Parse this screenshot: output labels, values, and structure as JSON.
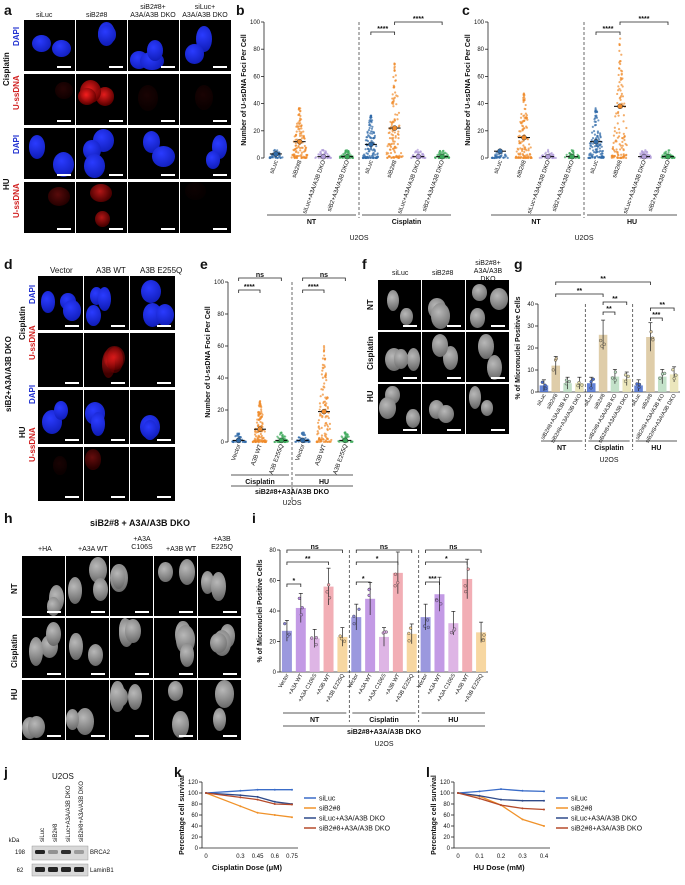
{
  "panels": {
    "a": {
      "letter": "a",
      "cols": [
        "siLuc",
        "siB2#8",
        "siB2#8+ A3A/A3B DKO",
        "siLuc+ A3A/A3B DKO"
      ],
      "groups": [
        "Cisplatin",
        "HU"
      ],
      "stains": [
        "DAPI",
        "U-ssDNA"
      ]
    },
    "b": {
      "letter": "b",
      "ylabel": "Number of U-ssDNA Foci Per Cell",
      "groups": [
        "NT",
        "Cisplatin"
      ],
      "cell_line": "U2OS",
      "conditions": [
        "siLuc",
        "siB2#8",
        "siLuc+A3A/A3B DKO",
        "siB2+A3A/A3B DKO"
      ],
      "sig": "****"
    },
    "c": {
      "letter": "c",
      "ylabel": "Number of U-ssDNA Foci Per Cell",
      "groups": [
        "NT",
        "HU"
      ],
      "cell_line": "U2OS",
      "conditions": [
        "siLuc",
        "siB2#8",
        "siLuc+A3A/A3B DKO",
        "siB2+A3A/A3B DKO"
      ],
      "sig": "****"
    },
    "d": {
      "letter": "d",
      "side": "siB2+A3A/A3B DKO",
      "cols": [
        "Vector",
        "A3B WT",
        "A3B E255Q"
      ],
      "groups": [
        "Cisplatin",
        "HU"
      ],
      "stains": [
        "DAPI",
        "U-ssDNA"
      ]
    },
    "e": {
      "letter": "e",
      "ylabel": "Number of U-ssDNA Foci Per Cell",
      "groups": [
        "Cisplatin",
        "HU"
      ],
      "conditions": [
        "Vector",
        "A3B WT",
        "A3B E255Q"
      ],
      "bottom": "siB2#8+A3A/A3B DKO",
      "cell_line": "U2OS",
      "sig": "****",
      "ns": "ns"
    },
    "f": {
      "letter": "f",
      "cols": [
        "siLuc",
        "siB2#8",
        "siB2#8+ A3A/A3B DKO"
      ],
      "rows": [
        "NT",
        "Cisplatin",
        "HU"
      ]
    },
    "g": {
      "letter": "g",
      "ylabel": "% of Micronuclei Positive Cells",
      "groups": [
        "NT",
        "Cisplatin",
        "HU"
      ],
      "conditions": [
        "siLuc",
        "siB2#8",
        "siB2#8+A3A/A3B KO",
        "siB2#8+A3A/A3B DKO"
      ],
      "cell_line": "U2OS",
      "s1": "**",
      "s2": "***"
    },
    "h": {
      "letter": "h",
      "title": "siB2#8 + A3A/A3B DKO",
      "cols": [
        "+HA",
        "+A3A WT",
        "+A3A C106S",
        "+A3B WT",
        "+A3B E225Q"
      ],
      "rows": [
        "NT",
        "Cisplatin",
        "HU"
      ]
    },
    "i": {
      "letter": "i",
      "ylabel": "% of Micronuclei Positive Cells",
      "groups": [
        "NT",
        "Cisplatin",
        "HU"
      ],
      "conditions": [
        "Vector",
        "+A3A WT",
        "+A3A C106S",
        "+A3B WT",
        "+A3B E225Q"
      ],
      "bottom": "siB2#8+A3A/A3B DKO",
      "cell_line": "U2OS",
      "s1": "*",
      "s2": "**",
      "s3": "***",
      "ns": "ns"
    },
    "j": {
      "letter": "j",
      "title": "U2OS",
      "kda": "kDa",
      "lanes": [
        "siLuc",
        "siB2#8",
        "siLuc+A3A/A3B DKO",
        "siB2#8+A3A/A3B DKO"
      ],
      "markers": [
        "198",
        "62"
      ],
      "bands": [
        "BRCA2",
        "LaminB1"
      ]
    },
    "k": {
      "letter": "k",
      "ylabel": "Percentage cell survival",
      "xlabel": "Cisplatin Dose (μM)"
    },
    "l": {
      "letter": "l",
      "ylabel": "Percentage cell survival",
      "xlabel": "HU Dose (mM)"
    }
  },
  "chart_data": [
    {
      "type": "scatter",
      "panel": "b",
      "ylim": [
        0,
        100
      ],
      "yticks": [
        0,
        20,
        40,
        60,
        80,
        100
      ],
      "categories": [
        "siLuc NT",
        "siB2#8 NT",
        "siLuc+A3A/A3B DKO NT",
        "siB2+A3A/A3B DKO NT",
        "siLuc Cisplatin",
        "siB2#8 Cisplatin",
        "siLuc+A3A/A3B DKO Cisplatin",
        "siB2+A3A/A3B DKO Cisplatin"
      ],
      "means": [
        3,
        12,
        1,
        1,
        10,
        22,
        1,
        1
      ]
    },
    {
      "type": "scatter",
      "panel": "c",
      "ylim": [
        0,
        100
      ],
      "yticks": [
        0,
        20,
        40,
        60,
        80,
        100
      ],
      "categories": [
        "siLuc NT",
        "siB2#8 NT",
        "siLuc+A3A/A3B DKO NT",
        "siB2+A3A/A3B DKO NT",
        "siLuc HU",
        "siB2#8 HU",
        "siLuc+A3A/A3B DKO HU",
        "siB2+A3A/A3B DKO HU"
      ],
      "means": [
        5,
        15,
        1,
        1,
        12,
        38,
        1,
        1
      ]
    },
    {
      "type": "scatter",
      "panel": "e",
      "ylim": [
        0,
        100
      ],
      "yticks": [
        0,
        20,
        40,
        60,
        80,
        100
      ],
      "categories": [
        "Vector Cisplatin",
        "A3B WT Cisplatin",
        "A3B E255Q Cisplatin",
        "Vector HU",
        "A3B WT HU",
        "A3B E255Q HU"
      ],
      "means": [
        1,
        8,
        1,
        1,
        19,
        1
      ]
    },
    {
      "type": "bar",
      "panel": "g",
      "ylim": [
        0,
        40
      ],
      "yticks": [
        0,
        10,
        20,
        30,
        40
      ],
      "categories": [
        "siLuc NT",
        "siB2#8 NT",
        "siB2#8+A3A/A3B KO NT",
        "siB2#8+A3A/A3B DKO NT",
        "siLuc Cisplatin",
        "siB2#8 Cisplatin",
        "siB2#8+A3A/A3B KO Cisplatin",
        "siB2#8+A3A/A3B DKO Cisplatin",
        "siLuc HU",
        "siB2#8 HU",
        "siB2#8+A3A/A3B KO HU",
        "siB2#8+A3A/A3B DKO HU"
      ],
      "values": [
        3,
        12,
        4,
        4,
        4,
        26,
        7,
        6,
        3,
        25,
        7,
        8
      ],
      "colors": [
        "#4a6fd0",
        "#d9c49a",
        "#b8dcc0",
        "#e8e2b0",
        "#4a6fd0",
        "#d9c49a",
        "#b8dcc0",
        "#e8e2b0",
        "#4a6fd0",
        "#d9c49a",
        "#b8dcc0",
        "#e8e2b0"
      ]
    },
    {
      "type": "bar",
      "panel": "i",
      "ylim": [
        0,
        80
      ],
      "yticks": [
        0,
        20,
        40,
        60,
        80
      ],
      "categories": [
        "Vector NT",
        "+A3A WT NT",
        "+A3A C106S NT",
        "+A3B WT NT",
        "+A3B E225Q NT",
        "Vector Cisplatin",
        "+A3A WT Cisplatin",
        "+A3A C106S Cisplatin",
        "+A3B WT Cisplatin",
        "+A3B E225Q Cisplatin",
        "Vector HU",
        "+A3A WT HU",
        "+A3A C106S HU",
        "+A3B WT HU",
        "+A3B E225Q HU"
      ],
      "values": [
        27,
        42,
        22,
        56,
        23,
        36,
        48,
        23,
        65,
        25,
        36,
        51,
        32,
        61,
        26
      ],
      "colors": [
        "#8a86d8",
        "#b888e0",
        "#d8a8e0",
        "#f0a0a8",
        "#f6d090",
        "#8a86d8",
        "#b888e0",
        "#d8a8e0",
        "#f0a0a8",
        "#f6d090",
        "#8a86d8",
        "#b888e0",
        "#d8a8e0",
        "#f0a0a8",
        "#f6d090"
      ]
    },
    {
      "type": "line",
      "panel": "k",
      "x": [
        0,
        0.3,
        0.45,
        0.6,
        0.75
      ],
      "ylim": [
        0,
        120
      ],
      "yticks": [
        0,
        20,
        40,
        60,
        80,
        100,
        120
      ],
      "series": [
        {
          "name": "siLuc",
          "color": "#3a6cc8",
          "values": [
            100,
            104,
            106,
            106,
            106
          ]
        },
        {
          "name": "siB2#8",
          "color": "#f0922a",
          "values": [
            100,
            76,
            64,
            60,
            56
          ]
        },
        {
          "name": "siLuc+A3A/A3B DKO",
          "color": "#2e4a8a",
          "values": [
            100,
            96,
            93,
            84,
            80
          ]
        },
        {
          "name": "siB2#8+A3A/A3B DKO",
          "color": "#b54a2a",
          "values": [
            100,
            92,
            88,
            80,
            79
          ]
        }
      ]
    },
    {
      "type": "line",
      "panel": "l",
      "x": [
        0,
        0.1,
        0.2,
        0.3,
        0.4
      ],
      "ylim": [
        0,
        120
      ],
      "yticks": [
        0,
        20,
        40,
        60,
        80,
        100,
        120
      ],
      "series": [
        {
          "name": "siLuc",
          "color": "#3a6cc8",
          "values": [
            100,
            103,
            107,
            104,
            103
          ]
        },
        {
          "name": "siB2#8",
          "color": "#f0922a",
          "values": [
            100,
            94,
            78,
            52,
            40
          ]
        },
        {
          "name": "siLuc+A3A/A3B DKO",
          "color": "#2e4a8a",
          "values": [
            100,
            95,
            88,
            86,
            86
          ]
        },
        {
          "name": "siB2#8+A3A/A3B DKO",
          "color": "#b54a2a",
          "values": [
            100,
            90,
            78,
            72,
            70
          ]
        }
      ]
    }
  ]
}
